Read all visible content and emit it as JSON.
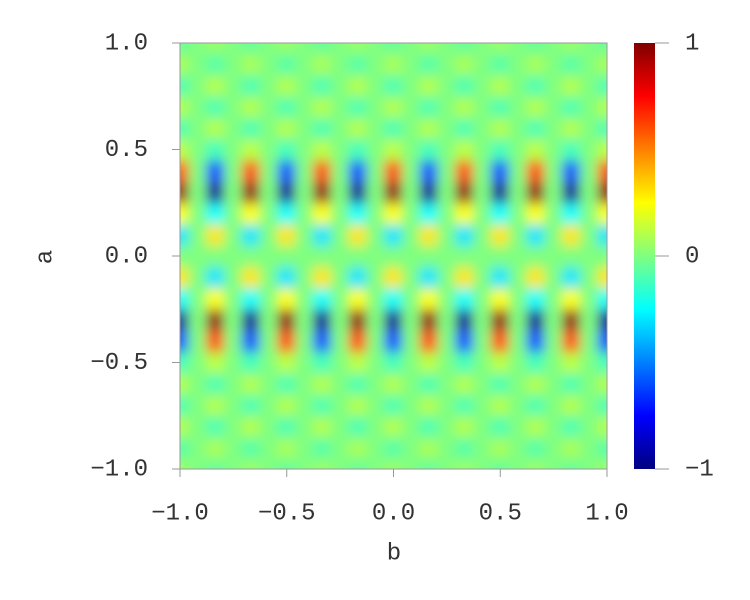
{
  "chart_data": {
    "type": "heatmap",
    "colormap": "jet",
    "xlabel": "b",
    "ylabel": "a",
    "xlim": [
      -1,
      1
    ],
    "ylim": [
      -1,
      1
    ],
    "clim": [
      -1,
      1
    ],
    "xticks": [
      {
        "value": -1,
        "label": "−1.0"
      },
      {
        "value": -0.5,
        "label": "−0.5"
      },
      {
        "value": 0,
        "label": "0.0"
      },
      {
        "value": 0.5,
        "label": "0.5"
      },
      {
        "value": 1,
        "label": "1.0"
      }
    ],
    "yticks": [
      {
        "value": -1,
        "label": "−1.0"
      },
      {
        "value": -0.5,
        "label": "−0.5"
      },
      {
        "value": 0,
        "label": "0.0"
      },
      {
        "value": 0.5,
        "label": "0.5"
      },
      {
        "value": 1,
        "label": "1.0"
      }
    ],
    "cticks": [
      {
        "value": -1,
        "label": "−1"
      },
      0,
      1
    ],
    "x": [
      -1,
      -0.9167,
      -0.8333,
      -0.75,
      -0.6667,
      -0.5833,
      -0.5,
      -0.4167,
      -0.3333,
      -0.25,
      -0.1667,
      -0.0833,
      0,
      0.0833,
      0.1667,
      0.25,
      0.3333,
      0.4167,
      0.5,
      0.5833,
      0.6667,
      0.75,
      0.8333,
      0.9167,
      1
    ],
    "y": [
      -1,
      -0.9,
      -0.8,
      -0.7,
      -0.6,
      -0.5,
      -0.4,
      -0.3,
      -0.2,
      -0.1,
      0,
      0.1,
      0.2,
      0.3,
      0.4,
      0.5,
      0.6,
      0.7,
      0.8,
      0.9,
      1
    ],
    "z": [
      [
        0.05,
        0,
        -0.05,
        0,
        0.05,
        0,
        -0.05,
        0,
        0.05,
        0,
        -0.05,
        0,
        0.05,
        0,
        -0.05,
        0,
        0.05,
        0,
        -0.05,
        0,
        0.05,
        0,
        -0.05,
        0,
        0.05
      ],
      [
        -0.08,
        0,
        0.08,
        0,
        -0.08,
        0,
        0.08,
        0,
        -0.08,
        0,
        0.08,
        0,
        -0.08,
        0,
        0.08,
        0,
        -0.08,
        0,
        0.08,
        0,
        -0.08,
        0,
        0.08,
        0,
        -0.08
      ],
      [
        0.1,
        0,
        -0.1,
        0,
        0.1,
        0,
        -0.1,
        0,
        0.1,
        0,
        -0.1,
        0,
        0.1,
        0,
        -0.1,
        0,
        0.1,
        0,
        -0.1,
        0,
        0.1,
        0,
        -0.1,
        0,
        0.1
      ],
      [
        -0.1,
        0,
        0.1,
        0,
        -0.1,
        0,
        0.1,
        0,
        -0.1,
        0,
        0.1,
        0,
        -0.1,
        0,
        0.1,
        0,
        -0.1,
        0,
        0.1,
        0,
        -0.1,
        0,
        0.1,
        0,
        -0.1
      ],
      [
        0.1,
        0,
        -0.1,
        0,
        0.1,
        0,
        -0.1,
        0,
        0.1,
        0,
        -0.1,
        0,
        0.1,
        0,
        -0.1,
        0,
        0.1,
        0,
        -0.1,
        0,
        0.1,
        0,
        -0.1,
        0,
        0.1
      ],
      [
        -0.12,
        0,
        0.12,
        0,
        -0.12,
        0,
        0.12,
        0,
        -0.12,
        0,
        0.12,
        0,
        -0.12,
        0,
        0.12,
        0,
        -0.12,
        0,
        0.12,
        0,
        -0.12,
        0,
        0.12,
        0,
        -0.12
      ],
      [
        -0.6,
        0,
        0.6,
        0,
        -0.6,
        0,
        0.6,
        0,
        -0.6,
        0,
        0.6,
        0,
        -0.6,
        0,
        0.6,
        0,
        -0.6,
        0,
        0.6,
        0,
        -0.6,
        0,
        0.6,
        0,
        -0.6
      ],
      [
        -0.95,
        0,
        0.95,
        0,
        -0.95,
        0,
        0.95,
        0,
        -0.95,
        0,
        0.95,
        0,
        -0.95,
        0,
        0.95,
        0,
        -0.95,
        0,
        0.95,
        0,
        -0.95,
        0,
        0.95,
        0,
        -0.95
      ],
      [
        -0.25,
        0,
        0.25,
        0,
        -0.25,
        0,
        0.25,
        0,
        -0.25,
        0,
        0.25,
        0,
        -0.25,
        0,
        0.25,
        0,
        -0.25,
        0,
        0.25,
        0,
        -0.25,
        0,
        0.25,
        0,
        -0.25
      ],
      [
        0.3,
        0,
        -0.3,
        0,
        0.3,
        0,
        -0.3,
        0,
        0.3,
        0,
        -0.3,
        0,
        0.3,
        0,
        -0.3,
        0,
        0.3,
        0,
        -0.3,
        0,
        0.3,
        0,
        -0.3,
        0,
        0.3
      ],
      [
        0,
        0,
        0,
        0,
        0,
        0,
        0,
        0,
        0,
        0,
        0,
        0,
        0,
        0,
        0,
        0,
        0,
        0,
        0,
        0,
        0,
        0,
        0,
        0,
        0
      ],
      [
        -0.3,
        0,
        0.3,
        0,
        -0.3,
        0,
        0.3,
        0,
        -0.3,
        0,
        0.3,
        0,
        -0.3,
        0,
        0.3,
        0,
        -0.3,
        0,
        0.3,
        0,
        -0.3,
        0,
        0.3,
        0,
        -0.3
      ],
      [
        0.25,
        0,
        -0.25,
        0,
        0.25,
        0,
        -0.25,
        0,
        0.25,
        0,
        -0.25,
        0,
        0.25,
        0,
        -0.25,
        0,
        0.25,
        0,
        -0.25,
        0,
        0.25,
        0,
        -0.25,
        0,
        0.25
      ],
      [
        0.95,
        0,
        -0.95,
        0,
        0.95,
        0,
        -0.95,
        0,
        0.95,
        0,
        -0.95,
        0,
        0.95,
        0,
        -0.95,
        0,
        0.95,
        0,
        -0.95,
        0,
        0.95,
        0,
        -0.95,
        0,
        0.95
      ],
      [
        0.6,
        0,
        -0.6,
        0,
        0.6,
        0,
        -0.6,
        0,
        0.6,
        0,
        -0.6,
        0,
        0.6,
        0,
        -0.6,
        0,
        0.6,
        0,
        -0.6,
        0,
        0.6,
        0,
        -0.6,
        0,
        0.6
      ],
      [
        0.12,
        0,
        -0.12,
        0,
        0.12,
        0,
        -0.12,
        0,
        0.12,
        0,
        -0.12,
        0,
        0.12,
        0,
        -0.12,
        0,
        0.12,
        0,
        -0.12,
        0,
        0.12,
        0,
        -0.12,
        0,
        0.12
      ],
      [
        -0.1,
        0,
        0.1,
        0,
        -0.1,
        0,
        0.1,
        0,
        -0.1,
        0,
        0.1,
        0,
        -0.1,
        0,
        0.1,
        0,
        -0.1,
        0,
        0.1,
        0,
        -0.1,
        0,
        0.1,
        0,
        -0.1
      ],
      [
        0.1,
        0,
        -0.1,
        0,
        0.1,
        0,
        -0.1,
        0,
        0.1,
        0,
        -0.1,
        0,
        0.1,
        0,
        -0.1,
        0,
        0.1,
        0,
        -0.1,
        0,
        0.1,
        0,
        -0.1,
        0,
        0.1
      ],
      [
        -0.1,
        0,
        0.1,
        0,
        -0.1,
        0,
        0.1,
        0,
        -0.1,
        0,
        0.1,
        0,
        -0.1,
        0,
        0.1,
        0,
        -0.1,
        0,
        0.1,
        0,
        -0.1,
        0,
        0.1,
        0,
        -0.1
      ],
      [
        0.08,
        0,
        -0.08,
        0,
        0.08,
        0,
        -0.08,
        0,
        0.08,
        0,
        -0.08,
        0,
        0.08,
        0,
        -0.08,
        0,
        0.08,
        0,
        -0.08,
        0,
        0.08,
        0,
        -0.08,
        0,
        0.08
      ],
      [
        -0.05,
        0,
        0.05,
        0,
        -0.05,
        0,
        0.05,
        0,
        -0.05,
        0,
        0.05,
        0,
        -0.05,
        0,
        0.05,
        0,
        -0.05,
        0,
        0.05,
        0,
        -0.05,
        0,
        0.05,
        0,
        -0.05
      ]
    ]
  }
}
